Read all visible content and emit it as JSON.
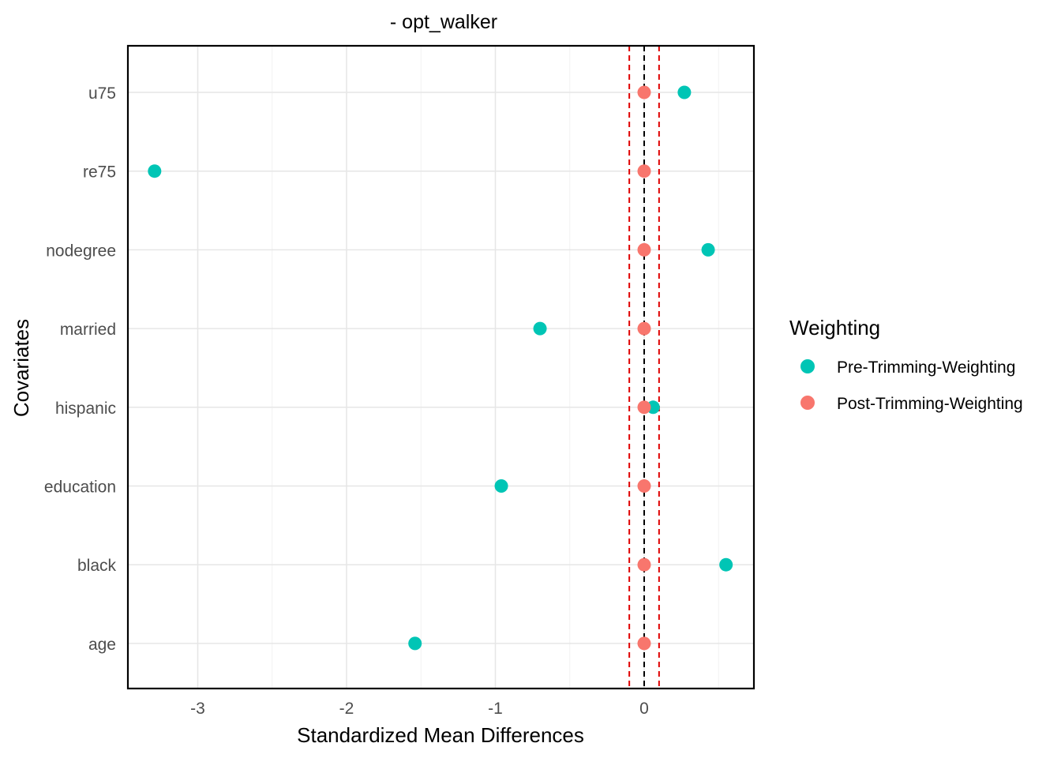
{
  "chart_data": {
    "type": "scatter",
    "title": "- opt_walker",
    "xlabel": "Standardized Mean Differences",
    "ylabel": "Covariates",
    "xlim": [
      -3.5,
      0.74
    ],
    "xticks": [
      "-3",
      "-2",
      "-1",
      "0"
    ],
    "xtick_values": [
      -3,
      -2,
      -1,
      0
    ],
    "categories": [
      "u75",
      "re75",
      "nodegree",
      "married",
      "hispanic",
      "education",
      "black",
      "age"
    ],
    "grid": true,
    "legend_title": "Weighting",
    "legend_position": "right",
    "reference_lines": [
      {
        "x": 0,
        "color": "#000000",
        "style": "dashed"
      },
      {
        "x": -0.1,
        "color": "#e00000",
        "style": "dashed"
      },
      {
        "x": 0.1,
        "color": "#e00000",
        "style": "dashed"
      }
    ],
    "series": [
      {
        "name": "Pre-Trimming-Weighting",
        "color": "#00c5b5",
        "values": [
          0.27,
          -3.29,
          0.43,
          -0.7,
          0.06,
          -0.96,
          0.55,
          -1.54
        ]
      },
      {
        "name": "Post-Trimming-Weighting",
        "color": "#f8766d",
        "values": [
          0.0,
          0.0,
          0.0,
          0.0,
          0.0,
          0.0,
          0.0,
          0.0
        ]
      }
    ]
  }
}
